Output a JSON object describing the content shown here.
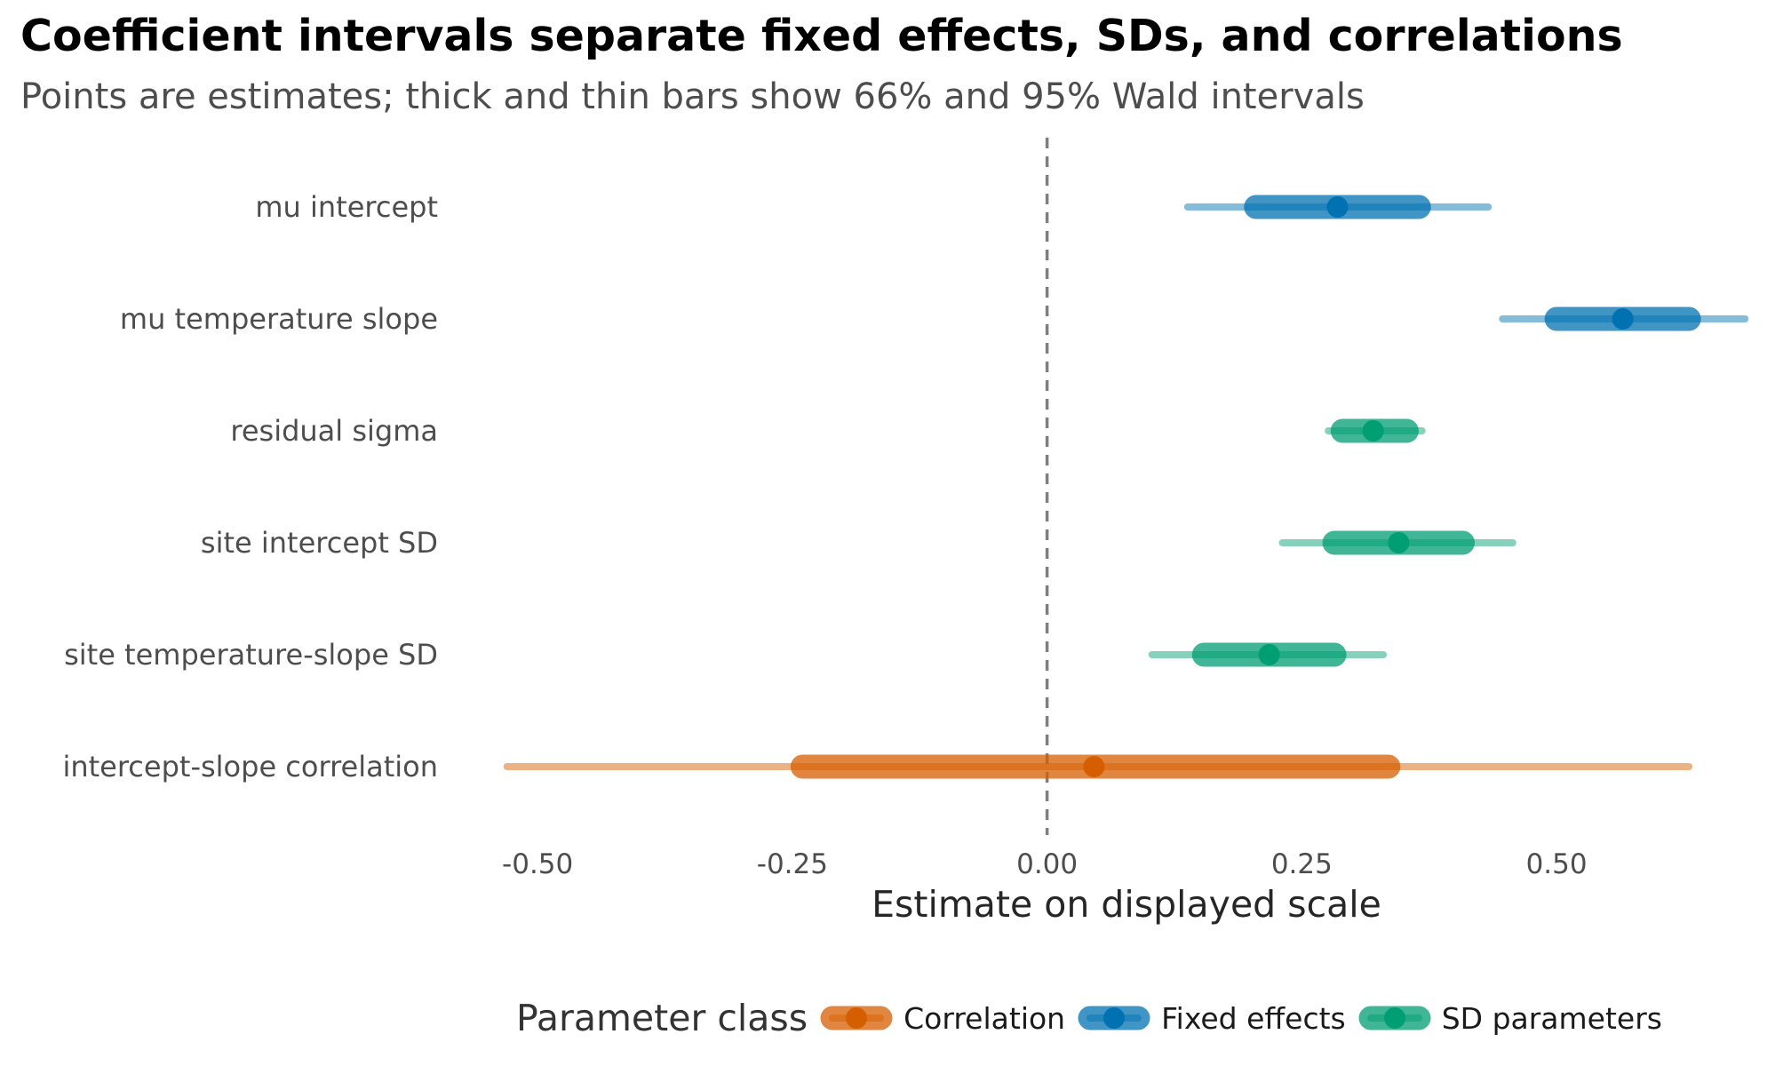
{
  "chart_data": {
    "type": "interval-dot",
    "title": "Coefficient intervals separate fixed effects, SDs, and correlations",
    "subtitle": "Points are estimates; thick and thin bars show 66% and 95% Wald intervals",
    "xlabel": "Estimate on displayed scale",
    "ylabel": "",
    "xlim": [
      -0.535,
      0.69
    ],
    "x_ticks": [
      -0.5,
      -0.25,
      0.0,
      0.25,
      0.5
    ],
    "x_tick_labels": [
      "-0.50",
      "-0.25",
      "0.00",
      "0.25",
      "0.50"
    ],
    "reference_line": 0.0,
    "grid": false,
    "legend_position": "bottom",
    "legend_title": "Parameter class",
    "classes": [
      {
        "name": "Correlation",
        "color": "#D55E00"
      },
      {
        "name": "Fixed effects",
        "color": "#0072B2"
      },
      {
        "name": "SD parameters",
        "color": "#009E73"
      }
    ],
    "parameters": [
      {
        "label": "mu intercept",
        "class": "Fixed effects",
        "estimate": 0.285,
        "ci66": [
          0.205,
          0.365
        ],
        "ci95": [
          0.138,
          0.433
        ]
      },
      {
        "label": "mu temperature slope",
        "class": "Fixed effects",
        "estimate": 0.565,
        "ci66": [
          0.5,
          0.63
        ],
        "ci95": [
          0.447,
          0.685
        ]
      },
      {
        "label": "residual sigma",
        "class": "SD parameters",
        "estimate": 0.32,
        "ci66": [
          0.29,
          0.353
        ],
        "ci95": [
          0.276,
          0.368
        ]
      },
      {
        "label": "site intercept SD",
        "class": "SD parameters",
        "estimate": 0.345,
        "ci66": [
          0.282,
          0.408
        ],
        "ci95": [
          0.231,
          0.457
        ]
      },
      {
        "label": "site temperature-slope SD",
        "class": "SD parameters",
        "estimate": 0.218,
        "ci66": [
          0.154,
          0.282
        ],
        "ci95": [
          0.103,
          0.33
        ]
      },
      {
        "label": "intercept-slope correlation",
        "class": "Correlation",
        "estimate": 0.046,
        "ci66": [
          -0.24,
          0.335
        ],
        "ci95": [
          -0.53,
          0.63
        ]
      }
    ]
  }
}
